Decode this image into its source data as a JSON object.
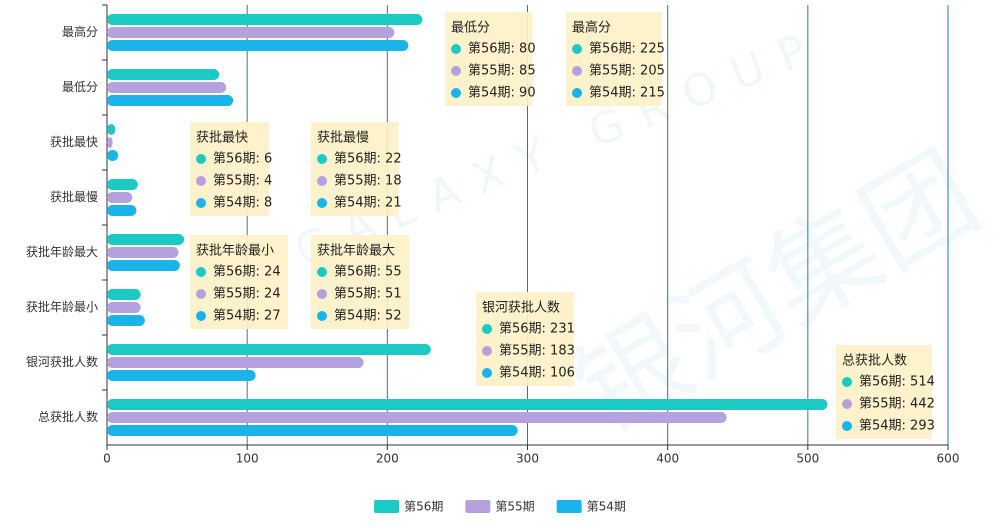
{
  "chart_data": {
    "type": "hbar",
    "watermark": "银河集团",
    "watermark_en": "GALAXY GROUP",
    "categories": [
      "最高分",
      "最低分",
      "获批最快",
      "获批最慢",
      "获批年龄最大",
      "获批年龄最小",
      "银河获批人数",
      "总获批人数"
    ],
    "series": [
      {
        "name": "第56期",
        "color": "#1cc9c3",
        "values": [
          225,
          80,
          6,
          22,
          55,
          24,
          231,
          514
        ],
        "value_labels": [
          "第56期: 225",
          "第56期: 80",
          "第56期: 6",
          "第56期: 22",
          "第56期: 55",
          "第56期: 24",
          "第56期: 231",
          "第56期: 514"
        ]
      },
      {
        "name": "第55期",
        "color": "#b5a1dd",
        "values": [
          205,
          85,
          4,
          18,
          51,
          24,
          183,
          442
        ],
        "value_labels": [
          "第55期: 205",
          "第55期: 85",
          "第55期: 4",
          "第55期: 18",
          "第55期: 51",
          "第55期: 24",
          "第55期: 183",
          "第55期: 442"
        ]
      },
      {
        "name": "第54期",
        "color": "#1ab3ea",
        "values": [
          215,
          90,
          8,
          21,
          52,
          27,
          106,
          293
        ],
        "value_labels": [
          "第54期: 215",
          "第54期: 90",
          "第54期: 8",
          "第54期: 21",
          "第54期: 52",
          "第54期: 27",
          "第54期: 106",
          "第54期: 293"
        ]
      }
    ],
    "xlim": [
      0,
      600
    ],
    "xticks": [
      0,
      100,
      200,
      300,
      400,
      500,
      600
    ],
    "grid": true,
    "legend": "bottom"
  }
}
